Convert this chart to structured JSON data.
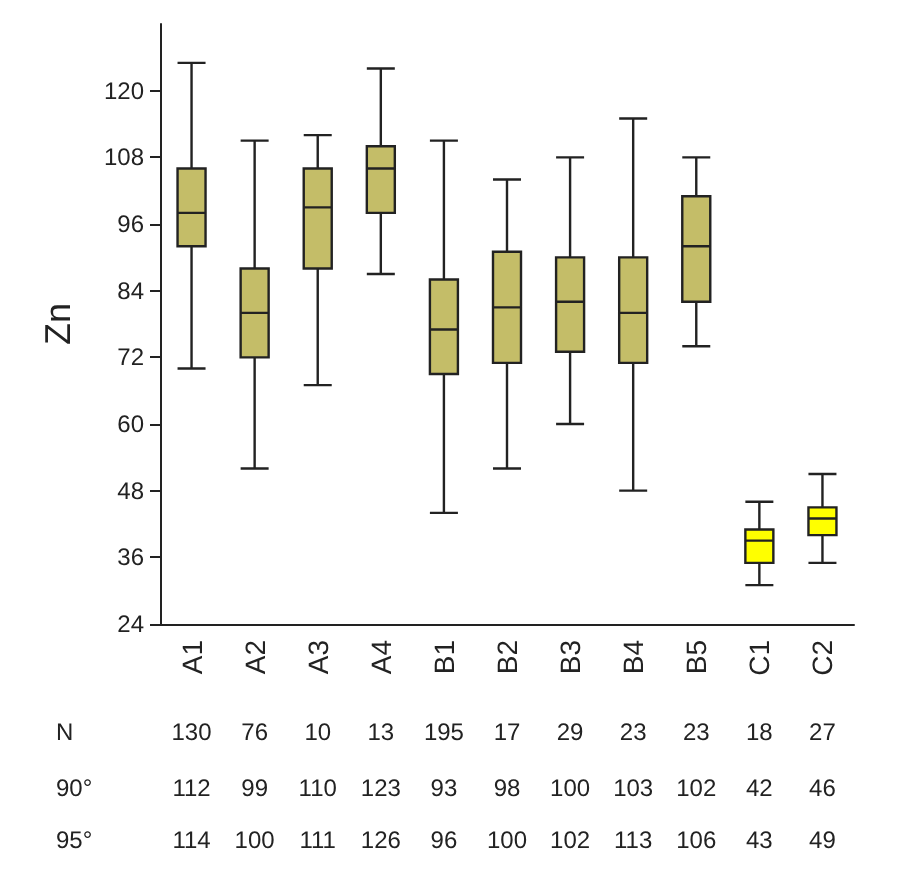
{
  "chart_data": {
    "type": "box",
    "ylabel": "Zn",
    "categories": [
      "A1",
      "A2",
      "A3",
      "A4",
      "B1",
      "B2",
      "B3",
      "B4",
      "B5",
      "C1",
      "C2"
    ],
    "boxes": [
      {
        "low": 70,
        "q1": 92,
        "median": 98,
        "q3": 106,
        "high": 125
      },
      {
        "low": 52,
        "q1": 72,
        "median": 80,
        "q3": 88,
        "high": 111
      },
      {
        "low": 67,
        "q1": 88,
        "median": 99,
        "q3": 106,
        "high": 112
      },
      {
        "low": 87,
        "q1": 98,
        "median": 106,
        "q3": 110,
        "high": 124
      },
      {
        "low": 44,
        "q1": 69,
        "median": 77,
        "q3": 86,
        "high": 111
      },
      {
        "low": 52,
        "q1": 71,
        "median": 81,
        "q3": 91,
        "high": 104
      },
      {
        "low": 60,
        "q1": 73,
        "median": 82,
        "q3": 90,
        "high": 108
      },
      {
        "low": 48,
        "q1": 71,
        "median": 80,
        "q3": 90,
        "high": 115
      },
      {
        "low": 74,
        "q1": 82,
        "median": 92,
        "q3": 101,
        "high": 108
      },
      {
        "low": 31,
        "q1": 35,
        "median": 39,
        "q3": 41,
        "high": 46
      },
      {
        "low": 35,
        "q1": 40,
        "median": 43,
        "q3": 45,
        "high": 51
      }
    ],
    "colors": [
      "#c4bd68",
      "#c4bd68",
      "#c4bd68",
      "#c4bd68",
      "#c4bd68",
      "#c4bd68",
      "#c4bd68",
      "#c4bd68",
      "#c4bd68",
      "#ffff00",
      "#ffff00"
    ],
    "ylim": [
      24,
      132
    ],
    "yticks": [
      24,
      36,
      48,
      60,
      72,
      84,
      96,
      108,
      120
    ],
    "grid": false,
    "annotations": [
      "N",
      "130",
      "76",
      "10",
      "13",
      "195",
      "17",
      "29",
      "23",
      "23",
      "18",
      "27",
      "90°",
      "112",
      "99",
      "110",
      "123",
      "93",
      "98",
      "100",
      "103",
      "102",
      "42",
      "46",
      "95°",
      "114",
      "100",
      "111",
      "126",
      "96",
      "100",
      "102",
      "113",
      "106",
      "43",
      "49"
    ]
  }
}
